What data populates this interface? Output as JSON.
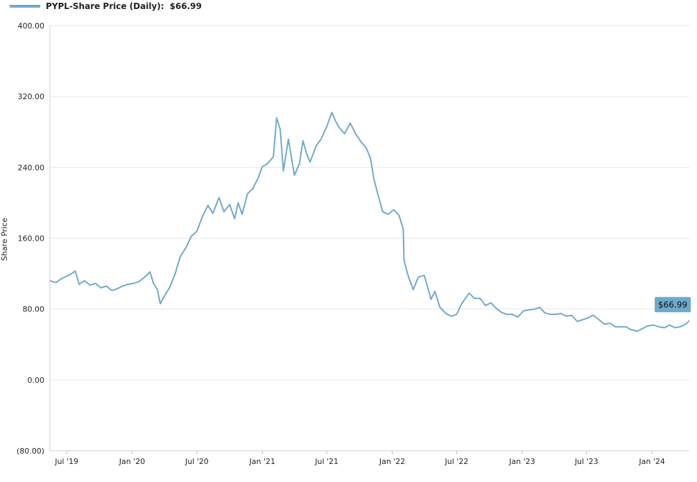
{
  "legend": {
    "series_name": "PYPL-Share Price (Daily):",
    "last_value": "$66.99"
  },
  "chart_data": {
    "type": "line",
    "title": "",
    "xlabel": "",
    "ylabel": "Share Price",
    "ylim": [
      -80,
      400
    ],
    "y_ticks": [
      -80,
      0,
      80,
      160,
      240,
      320,
      400
    ],
    "y_tick_labels": [
      "(80.00)",
      "0.00",
      "80.00",
      "160.00",
      "240.00",
      "320.00",
      "400.00"
    ],
    "x_range": [
      "2019-05-15",
      "2024-04-15"
    ],
    "x_ticks": [
      "2019-07-01",
      "2020-01-01",
      "2020-07-01",
      "2021-01-01",
      "2021-07-01",
      "2022-01-01",
      "2022-07-01",
      "2023-01-01",
      "2023-07-01",
      "2024-01-01"
    ],
    "x_tick_labels": [
      "Jul '19",
      "Jan '20",
      "Jul '20",
      "Jan '21",
      "Jul '21",
      "Jan '22",
      "Jul '22",
      "Jan '23",
      "Jul '23",
      "Jan '24"
    ],
    "grid": true,
    "legend_position": "top-left",
    "colors": {
      "line": "#6ea9cc",
      "grid": "#e6e6e6",
      "callout": "#6ea9cc"
    },
    "callout_label": "$66.99",
    "series": [
      {
        "name": "PYPL-Share Price (Daily)",
        "x": [
          "2019-05-15",
          "2019-06-01",
          "2019-06-15",
          "2019-07-01",
          "2019-07-15",
          "2019-07-25",
          "2019-08-05",
          "2019-08-20",
          "2019-09-05",
          "2019-09-20",
          "2019-10-05",
          "2019-10-20",
          "2019-11-05",
          "2019-11-20",
          "2019-12-05",
          "2019-12-20",
          "2020-01-05",
          "2020-01-20",
          "2020-02-05",
          "2020-02-20",
          "2020-03-01",
          "2020-03-12",
          "2020-03-20",
          "2020-04-01",
          "2020-04-15",
          "2020-05-01",
          "2020-05-15",
          "2020-06-01",
          "2020-06-15",
          "2020-07-01",
          "2020-07-15",
          "2020-08-01",
          "2020-08-15",
          "2020-09-01",
          "2020-09-15",
          "2020-10-01",
          "2020-10-15",
          "2020-10-25",
          "2020-11-05",
          "2020-11-20",
          "2020-12-05",
          "2020-12-20",
          "2021-01-01",
          "2021-01-15",
          "2021-02-01",
          "2021-02-10",
          "2021-02-20",
          "2021-03-01",
          "2021-03-15",
          "2021-04-01",
          "2021-04-15",
          "2021-04-25",
          "2021-05-05",
          "2021-05-15",
          "2021-06-01",
          "2021-06-15",
          "2021-07-01",
          "2021-07-15",
          "2021-07-26",
          "2021-08-05",
          "2021-08-20",
          "2021-09-05",
          "2021-09-20",
          "2021-10-05",
          "2021-10-20",
          "2021-11-01",
          "2021-11-10",
          "2021-11-20",
          "2021-12-05",
          "2021-12-20",
          "2022-01-05",
          "2022-01-20",
          "2022-02-01",
          "2022-02-03",
          "2022-02-15",
          "2022-03-01",
          "2022-03-15",
          "2022-04-01",
          "2022-04-20",
          "2022-05-01",
          "2022-05-15",
          "2022-06-01",
          "2022-06-15",
          "2022-07-01",
          "2022-07-15",
          "2022-08-05",
          "2022-08-20",
          "2022-09-05",
          "2022-09-20",
          "2022-10-05",
          "2022-10-20",
          "2022-11-05",
          "2022-11-20",
          "2022-12-05",
          "2022-12-20",
          "2023-01-05",
          "2023-01-20",
          "2023-02-05",
          "2023-02-20",
          "2023-03-05",
          "2023-03-20",
          "2023-04-05",
          "2023-04-20",
          "2023-05-05",
          "2023-05-20",
          "2023-06-05",
          "2023-06-20",
          "2023-07-05",
          "2023-07-20",
          "2023-08-05",
          "2023-08-20",
          "2023-09-05",
          "2023-09-20",
          "2023-10-05",
          "2023-10-20",
          "2023-11-01",
          "2023-11-20",
          "2023-12-05",
          "2023-12-20",
          "2024-01-05",
          "2024-01-20",
          "2024-02-05",
          "2024-02-20",
          "2024-03-05",
          "2024-03-20",
          "2024-04-05",
          "2024-04-15"
        ],
        "y": [
          112,
          110,
          114,
          117,
          120,
          123,
          108,
          112,
          107,
          109,
          104,
          106,
          101,
          103,
          106,
          108,
          109,
          111,
          116,
          122,
          109,
          102,
          86,
          95,
          104,
          120,
          139,
          150,
          162,
          168,
          183,
          197,
          188,
          206,
          190,
          198,
          182,
          200,
          187,
          210,
          216,
          228,
          241,
          244,
          252,
          296,
          283,
          236,
          272,
          231,
          244,
          270,
          256,
          246,
          264,
          272,
          286,
          302,
          292,
          285,
          278,
          290,
          278,
          269,
          262,
          250,
          228,
          212,
          190,
          187,
          192,
          186,
          170,
          135,
          117,
          102,
          116,
          118,
          91,
          100,
          82,
          75,
          72,
          74,
          86,
          98,
          92,
          92,
          84,
          87,
          81,
          76,
          74,
          74,
          71,
          78,
          79,
          80,
          82,
          76,
          74,
          74,
          75,
          72,
          73,
          66,
          68,
          70,
          73,
          68,
          63,
          64,
          60,
          60,
          60,
          57,
          55,
          58,
          61,
          62,
          60,
          59,
          62,
          59,
          60,
          63,
          67
        ]
      }
    ]
  }
}
